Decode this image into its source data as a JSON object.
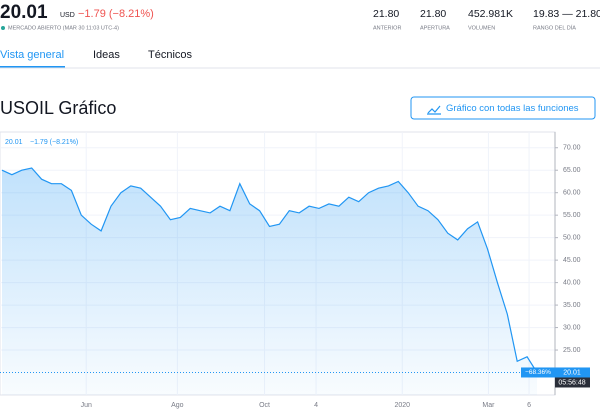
{
  "header": {
    "price": "20.01",
    "currency": "USD",
    "change": "−1.79 (−8.21%)",
    "status": "MERCADO ABIERTO (MAR 30 11:03 UTC-4)",
    "stats": [
      {
        "value": "21.80",
        "label": "ANTERIOR"
      },
      {
        "value": "21.80",
        "label": "APERTURA"
      },
      {
        "value": "452.981K",
        "label": "VOLUMEN"
      },
      {
        "value": "19.83 — 21.80",
        "label": "RANGO DEL DÍA"
      }
    ]
  },
  "tabs": [
    "Vista general",
    "Ideas",
    "Técnicos"
  ],
  "section": {
    "title": "USOIL Gráfico",
    "button": "Gráfico con todas las funciones"
  },
  "chart_data": {
    "type": "line",
    "color": "#2196f3",
    "legend": {
      "price": "20.01",
      "change": "−1.79 (−8.21%)"
    },
    "values": [
      65,
      64,
      65,
      65.5,
      63,
      62,
      62,
      60.5,
      55,
      53,
      51.5,
      57,
      60,
      61.5,
      61,
      59,
      57,
      54,
      54.5,
      56.5,
      56,
      55.5,
      57,
      56,
      62,
      57.5,
      56,
      52.5,
      53,
      56,
      55.5,
      57,
      56.5,
      57.5,
      57,
      59,
      58,
      60,
      61,
      61.5,
      62.5,
      60,
      57,
      56,
      54,
      51,
      49.5,
      52,
      53.5,
      47.5,
      40,
      33,
      22.5,
      23.5,
      20.01
    ],
    "ylim": [
      15,
      73.5
    ],
    "yticks": [
      {
        "value": 25,
        "label": "25.00"
      },
      {
        "value": 30,
        "label": "30.00"
      },
      {
        "value": 35,
        "label": "35.00"
      },
      {
        "value": 40,
        "label": "40.00"
      },
      {
        "value": 45,
        "label": "45.00"
      },
      {
        "value": 50,
        "label": "50.00"
      },
      {
        "value": 55,
        "label": "55.00"
      },
      {
        "value": 60,
        "label": "60.00"
      },
      {
        "value": 65,
        "label": "65.00"
      },
      {
        "value": 70,
        "label": "70.00"
      }
    ],
    "xlim": [
      0,
      54
    ],
    "xticks": [
      {
        "value": 8.5,
        "label": "Jun"
      },
      {
        "value": 17.7,
        "label": "Ago"
      },
      {
        "value": 26.5,
        "label": "Oct"
      },
      {
        "value": 31.7,
        "label": "4"
      },
      {
        "value": 40.4,
        "label": "2020"
      },
      {
        "value": 49.1,
        "label": "Mar"
      },
      {
        "value": 53.2,
        "label": "6"
      }
    ],
    "last_price_label": "20.01",
    "change_pct_label": "−68.36%",
    "countdown": "05:56:48",
    "grid": true
  }
}
